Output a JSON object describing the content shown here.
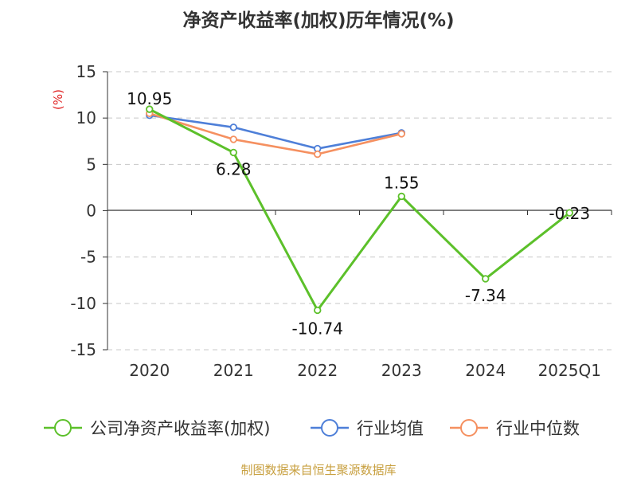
{
  "source": "制图数据来自恒生聚源数据库",
  "chart_data": {
    "type": "line",
    "title": "净资产收益率(加权)历年情况(%)",
    "ylabel": "(%)",
    "xlabel": "",
    "categories": [
      "2020",
      "2021",
      "2022",
      "2023",
      "2024",
      "2025Q1"
    ],
    "ylim": [
      -15,
      15
    ],
    "yticks": [
      15,
      10,
      5,
      0,
      -5,
      -10,
      -15
    ],
    "grid": true,
    "legend_position": "bottom",
    "series": [
      {
        "name": "公司净资产收益率(加权)",
        "color": "#5cc02a",
        "values": [
          10.95,
          6.28,
          -10.74,
          1.55,
          -7.34,
          -0.23
        ],
        "labels": [
          "10.95",
          "6.28",
          "-10.74",
          "1.55",
          "-7.34",
          "-0.23"
        ]
      },
      {
        "name": "行业均值",
        "color": "#4e7fd8",
        "values": [
          10.3,
          9.0,
          6.7,
          8.4,
          null,
          null
        ]
      },
      {
        "name": "行业中位数",
        "color": "#f59060",
        "values": [
          10.5,
          7.7,
          6.1,
          8.3,
          null,
          null
        ]
      }
    ]
  }
}
